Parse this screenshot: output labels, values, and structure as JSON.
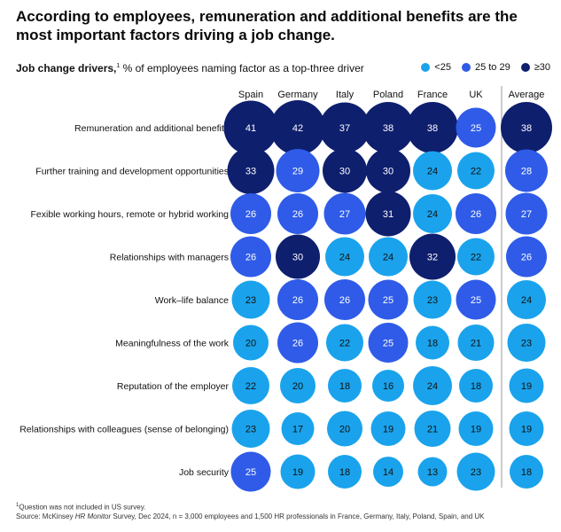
{
  "title": "According to employees, remuneration and additional benefits are the most important factors driving a job change.",
  "subtitle": {
    "bold": "Job change drivers,",
    "sup": "1",
    "rest": " % of employees naming factor as a top-three driver"
  },
  "legend": [
    {
      "label": "<25",
      "color": "#1aa3ec"
    },
    {
      "label": "25 to 29",
      "color": "#2f5be8"
    },
    {
      "label": "≥30",
      "color": "#0e1f6e"
    }
  ],
  "chart_data": {
    "type": "table",
    "columns": [
      "Spain",
      "Germany",
      "Italy",
      "Poland",
      "France",
      "UK"
    ],
    "average_label": "Average",
    "rows": [
      {
        "label": "Remuneration and additional benefits",
        "values": [
          41,
          42,
          37,
          38,
          38,
          25
        ],
        "average": 38
      },
      {
        "label": "Further training and development opportunities",
        "values": [
          33,
          29,
          30,
          30,
          24,
          22
        ],
        "average": 28
      },
      {
        "label": "Fexible working hours, remote or hybrid working",
        "values": [
          26,
          26,
          27,
          31,
          24,
          26
        ],
        "average": 27
      },
      {
        "label": "Relationships with managers",
        "values": [
          26,
          30,
          24,
          24,
          32,
          22
        ],
        "average": 26
      },
      {
        "label": "Work–life balance",
        "values": [
          23,
          26,
          26,
          25,
          23,
          25
        ],
        "average": 24
      },
      {
        "label": "Meaningfulness of the work",
        "values": [
          20,
          26,
          22,
          25,
          18,
          21
        ],
        "average": 23
      },
      {
        "label": "Reputation of the employer",
        "values": [
          22,
          20,
          18,
          16,
          24,
          18
        ],
        "average": 19
      },
      {
        "label": "Relationships with colleagues (sense of belonging)",
        "values": [
          23,
          17,
          20,
          19,
          21,
          19
        ],
        "average": 19
      },
      {
        "label": "Job security",
        "values": [
          25,
          19,
          18,
          14,
          13,
          23
        ],
        "average": 18
      }
    ],
    "colors": {
      "low": "#1aa3ec",
      "mid": "#2f5be8",
      "high": "#0e1f6e",
      "text": "#111111"
    }
  },
  "footnote": {
    "sup": "1",
    "note": "Question was not included in US survey.",
    "source_prefix": "Source: McKinsey ",
    "source_italic": "HR Monitor",
    "source_suffix": " Survey, Dec 2024, n = 3,000 employees and 1,500 HR professionals in France, Germany, Italy, Poland, Spain, and UK"
  }
}
